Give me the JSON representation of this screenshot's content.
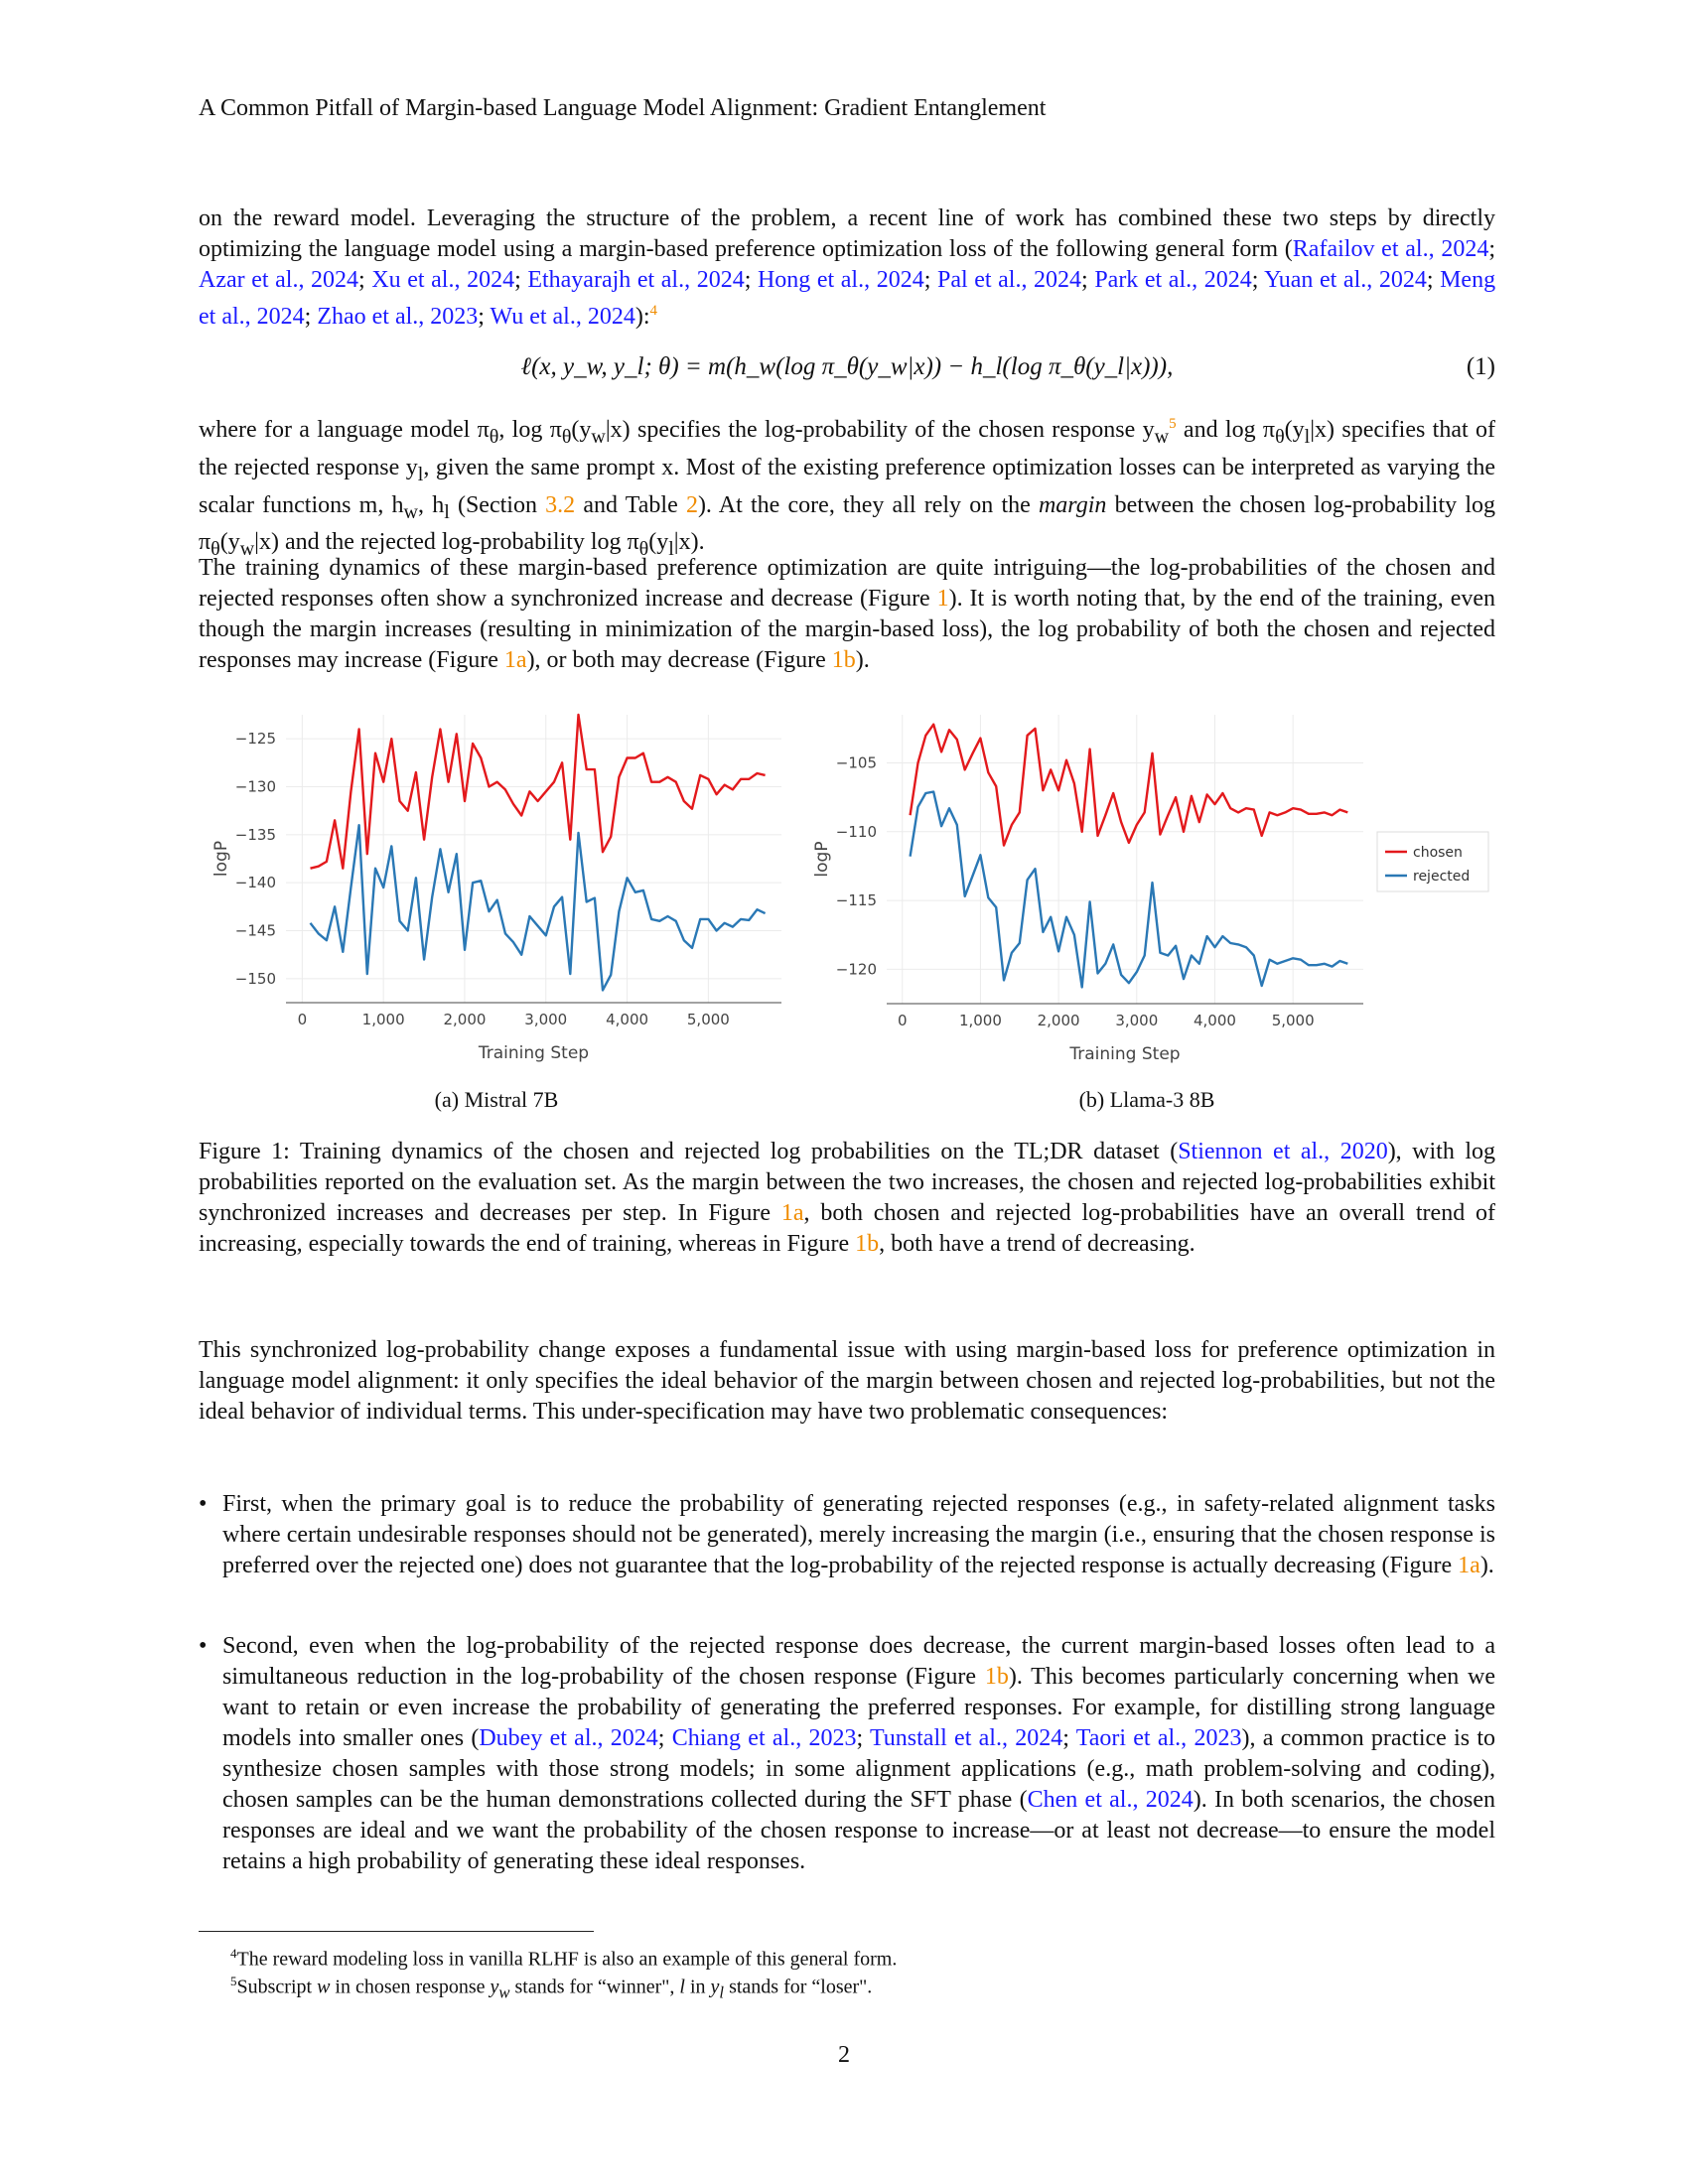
{
  "running_head": "A Common Pitfall of Margin-based Language Model Alignment: Gradient Entanglement",
  "para1": {
    "t1": "on the reward model. Leveraging the structure of the problem, a recent line of work has combined these two steps by directly optimizing the language model using a margin-based preference optimization loss of the following general form (",
    "cites": [
      {
        "name": "Rafailov et al.,",
        "year": "2024"
      },
      {
        "name": "Azar et al.,",
        "year": "2024"
      },
      {
        "name": "Xu et al.,",
        "year": "2024"
      },
      {
        "name": "Ethayarajh et al.,",
        "year": "2024"
      },
      {
        "name": "Hong et al.,",
        "year": "2024"
      },
      {
        "name": "Pal et al.,",
        "year": "2024"
      },
      {
        "name": "Park et al.,",
        "year": "2024"
      },
      {
        "name": "Yuan et al.,",
        "year": "2024"
      },
      {
        "name": "Meng et al.,",
        "year": "2024"
      },
      {
        "name": "Zhao et al.,",
        "year": "2023"
      },
      {
        "name": "Wu et al.,",
        "year": "2024"
      }
    ],
    "t2": "):",
    "fn": "4"
  },
  "equation": {
    "body": "ℓ(x, y_w, y_l; θ) = m(h_w(log π_θ(y_w|x)) − h_l(log π_θ(y_l|x))),",
    "number": "(1)"
  },
  "para2": {
    "t1": "where for a language model π",
    "t2": ", log π",
    "t3": "(y",
    "t4": "|x) specifies the log-probability of the chosen response y",
    "fn": "5",
    "t5": " and log π",
    "t6": "(y",
    "t7": "|x) specifies that of the rejected response y",
    "t8": ", given the same prompt x. Most of the existing preference optimization losses can be interpreted as varying the scalar functions m, h",
    "t9": ", h",
    "t10": " (Section ",
    "ref1": "3.2",
    "t11": " and Table ",
    "ref2": "2",
    "t12": "). At the core, they all rely on the ",
    "em": "margin",
    "t13": " between the chosen log-probability log π",
    "t14": "(y",
    "t15": "|x) and the rejected log-probability log π",
    "t16": "(y",
    "t17": "|x).",
    "sub_theta": "θ",
    "sub_w": "w",
    "sub_l": "l"
  },
  "para3": {
    "t1": "The training dynamics of these margin-based preference optimization are quite intriguing—the log-probabilities of the chosen and rejected responses often show a synchronized increase and decrease (Figure ",
    "ref1": "1",
    "t2": "). It is worth noting that, by the end of the training, even though the margin increases (resulting in minimization of the margin-based loss), the log probability of both the chosen and rejected responses may increase (Figure ",
    "ref2": "1a",
    "t3": "), or both may decrease (Figure ",
    "ref3": "1b",
    "t4": ")."
  },
  "figure": {
    "caption_a": "(a) Mistral 7B",
    "caption_b": "(b) Llama-3 8B",
    "caption": {
      "t1": "Figure 1:  Training dynamics of the chosen and rejected log probabilities on the TL;DR dataset (",
      "cite_name": "Stiennon et al.,",
      "cite_year": "2020",
      "t2": "), with log probabilities reported on the evaluation set. As the margin between the two increases, the chosen and rejected log-probabilities exhibit synchronized increases and decreases per step. In Figure ",
      "ref1": "1a",
      "t3": ", both chosen and rejected log-probabilities have an overall trend of increasing, especially towards the end of training, whereas in Figure ",
      "ref2": "1b",
      "t4": ", both have a trend of decreasing."
    }
  },
  "chart_data": [
    {
      "type": "line",
      "xlabel": "Training Step",
      "ylabel": "logP",
      "xlim": [
        -200,
        5900
      ],
      "ylim": [
        -152.5,
        -122.5
      ],
      "xticks": [
        0,
        1000,
        2000,
        3000,
        4000,
        5000
      ],
      "xtick_labels": [
        "0",
        "1,000",
        "2,000",
        "3,000",
        "4,000",
        "5,000"
      ],
      "yticks": [
        -125,
        -130,
        -135,
        -140,
        -145,
        -150
      ],
      "ytick_labels": [
        "−125",
        "−130",
        "−135",
        "−140",
        "−145",
        "−150"
      ],
      "grid": true,
      "colors": {
        "chosen": "#e3191c",
        "rejected": "#2a78b5"
      },
      "x": [
        100,
        200,
        300,
        400,
        500,
        600,
        700,
        800,
        900,
        1000,
        1100,
        1200,
        1300,
        1400,
        1500,
        1600,
        1700,
        1800,
        1900,
        2000,
        2100,
        2200,
        2300,
        2400,
        2500,
        2600,
        2700,
        2800,
        2900,
        3000,
        3100,
        3200,
        3300,
        3400,
        3500,
        3600,
        3700,
        3800,
        3900,
        4000,
        4100,
        4200,
        4300,
        4400,
        4500,
        4600,
        4700,
        4800,
        4900,
        5000,
        5100,
        5200,
        5300,
        5400,
        5500,
        5600,
        5700
      ],
      "series": [
        {
          "key": "chosen",
          "values": [
            -138.5,
            -138.3,
            -137.8,
            -133.5,
            -138.5,
            -130.5,
            -124,
            -137,
            -126.5,
            -129.5,
            -125,
            -131.5,
            -132.5,
            -128.5,
            -135.5,
            -129,
            -124,
            -129.5,
            -124.5,
            -131.5,
            -125.5,
            -127,
            -130,
            -129.5,
            -130.3,
            -131.8,
            -133,
            -130.5,
            -131.5,
            -130.5,
            -129.5,
            -127.5,
            -135.5,
            -122.5,
            -128.2,
            -128.2,
            -136.8,
            -135.2,
            -129,
            -127,
            -127,
            -126.5,
            -129.5,
            -129.5,
            -129,
            -129.5,
            -131.5,
            -132.3,
            -128.8,
            -129.2,
            -130.8,
            -129.8,
            -130.3,
            -129.2,
            -129.2,
            -128.6,
            -128.8
          ]
        },
        {
          "key": "rejected",
          "values": [
            -144.2,
            -145.3,
            -146,
            -142.5,
            -147.2,
            -140.5,
            -134,
            -149.5,
            -138.5,
            -140.5,
            -136.2,
            -144,
            -145,
            -139.5,
            -148,
            -141.5,
            -136.5,
            -141,
            -137,
            -147,
            -140,
            -139.8,
            -143,
            -141.8,
            -145.3,
            -146.2,
            -147.5,
            -143.5,
            -144.5,
            -145.5,
            -142.5,
            -141.5,
            -149.5,
            -134.8,
            -142,
            -141.6,
            -151.2,
            -149.6,
            -143,
            -139.5,
            -141,
            -140.8,
            -143.8,
            -144,
            -143.5,
            -144,
            -146,
            -146.8,
            -143.8,
            -143.8,
            -145,
            -144.2,
            -144.6,
            -143.8,
            -143.9,
            -142.8,
            -143.2
          ]
        }
      ]
    },
    {
      "type": "line",
      "xlabel": "Training Step",
      "ylabel": "logP",
      "xlim": [
        -200,
        5900
      ],
      "ylim": [
        -122.5,
        -101.5
      ],
      "xticks": [
        0,
        1000,
        2000,
        3000,
        4000,
        5000
      ],
      "xtick_labels": [
        "0",
        "1,000",
        "2,000",
        "3,000",
        "4,000",
        "5,000"
      ],
      "yticks": [
        -105,
        -110,
        -115,
        -120
      ],
      "ytick_labels": [
        "−105",
        "−110",
        "−115",
        "−120"
      ],
      "grid": true,
      "legend": {
        "position": "right",
        "entries": [
          "chosen",
          "rejected"
        ]
      },
      "colors": {
        "chosen": "#e3191c",
        "rejected": "#2a78b5"
      },
      "x": [
        100,
        200,
        300,
        400,
        500,
        600,
        700,
        800,
        900,
        1000,
        1100,
        1200,
        1300,
        1400,
        1500,
        1600,
        1700,
        1800,
        1900,
        2000,
        2100,
        2200,
        2300,
        2400,
        2500,
        2600,
        2700,
        2800,
        2900,
        3000,
        3100,
        3200,
        3300,
        3400,
        3500,
        3600,
        3700,
        3800,
        3900,
        4000,
        4100,
        4200,
        4300,
        4400,
        4500,
        4600,
        4700,
        4800,
        4900,
        5000,
        5100,
        5200,
        5300,
        5400,
        5500,
        5600,
        5700
      ],
      "series": [
        {
          "key": "chosen",
          "values": [
            -108.8,
            -105,
            -103,
            -102.2,
            -104.2,
            -102.6,
            -103.3,
            -105.5,
            -104.3,
            -103.2,
            -105.7,
            -106.7,
            -111,
            -109.5,
            -108.6,
            -103,
            -102.5,
            -107,
            -105.5,
            -107,
            -104.8,
            -106.5,
            -110,
            -104,
            -110.3,
            -108.8,
            -107.2,
            -109.3,
            -110.8,
            -109.5,
            -108.6,
            -104.3,
            -110.2,
            -108.8,
            -107.5,
            -110,
            -107.4,
            -109.3,
            -107.3,
            -108,
            -107.2,
            -108.3,
            -108.6,
            -108.3,
            -108.4,
            -110.3,
            -108.6,
            -108.8,
            -108.6,
            -108.3,
            -108.4,
            -108.7,
            -108.7,
            -108.6,
            -108.8,
            -108.4,
            -108.6
          ]
        },
        {
          "key": "rejected",
          "values": [
            -111.8,
            -108.2,
            -107.2,
            -107.1,
            -109.6,
            -108.3,
            -109.5,
            -114.7,
            -113.2,
            -111.7,
            -114.8,
            -115.5,
            -120.8,
            -118.8,
            -118.1,
            -113.5,
            -112.7,
            -117.3,
            -116.2,
            -118.7,
            -116.2,
            -117.5,
            -121.3,
            -115.1,
            -120.3,
            -119.6,
            -118.2,
            -120.4,
            -121,
            -120.2,
            -119,
            -113.7,
            -118.8,
            -119,
            -118.3,
            -120.7,
            -119,
            -119.6,
            -117.6,
            -118.4,
            -117.6,
            -118.1,
            -118.2,
            -118.4,
            -119,
            -121.2,
            -119.3,
            -119.6,
            -119.4,
            -119.2,
            -119.3,
            -119.7,
            -119.7,
            -119.6,
            -119.8,
            -119.4,
            -119.6
          ]
        }
      ]
    }
  ],
  "para4": "This synchronized log-probability change exposes a fundamental issue with using margin-based loss for preference optimization in language model alignment: it only specifies the ideal behavior of the margin between chosen and rejected log-probabilities, but not the ideal behavior of individual terms.  This under-specification may have two problematic consequences:",
  "bullets": {
    "marker": "•",
    "b1": {
      "t1": "First, when the primary goal is to reduce the probability of generating rejected responses (e.g., in safety-related alignment tasks where certain undesirable responses should not be generated), merely increasing the margin (i.e., ensuring that the chosen response is preferred over the rejected one) does not guarantee that the log-probability of the rejected response is actually decreasing (Figure ",
      "ref": "1a",
      "t2": ")."
    },
    "b2": {
      "t1": "Second, even when the log-probability of the rejected response does decrease, the current margin-based losses often lead to a simultaneous reduction in the log-probability of the chosen response (Figure ",
      "ref": "1b",
      "t2": "). This becomes particularly concerning when we want to retain or even increase the probability of generating the preferred responses.  For example, for distilling strong language models into smaller ones (",
      "cites1": [
        {
          "name": "Dubey et al.,",
          "year": "2024"
        },
        {
          "name": "Chiang et al.,",
          "year": "2023"
        },
        {
          "name": "Tunstall et al.,",
          "year": "2024"
        },
        {
          "name": "Taori et al.,",
          "year": "2023"
        }
      ],
      "t3": "), a common practice is to synthesize chosen samples with those strong models; in some alignment applications (e.g., math problem-solving and coding), chosen samples can be the human demonstrations collected during the SFT phase (",
      "cite2_name": "Chen et al.,",
      "cite2_year": "2024",
      "t4": "). In both scenarios, the chosen responses are ideal and we want the probability of the chosen response to increase—or at least not decrease—to ensure the model retains a high probability of generating these ideal responses."
    }
  },
  "footnotes": {
    "f4_num": "4",
    "f4_text": "The reward modeling loss in vanilla RLHF is also an example of this general form.",
    "f5_num": "5",
    "f5_a": "Subscript ",
    "f5_w": "w",
    "f5_b": " in chosen response ",
    "f5_yw": "y",
    "f5_c": " stands for “winner\", ",
    "f5_l": "l",
    "f5_d": " in ",
    "f5_yl": "y",
    "f5_e": " stands for “loser\"."
  },
  "page_number": "2"
}
